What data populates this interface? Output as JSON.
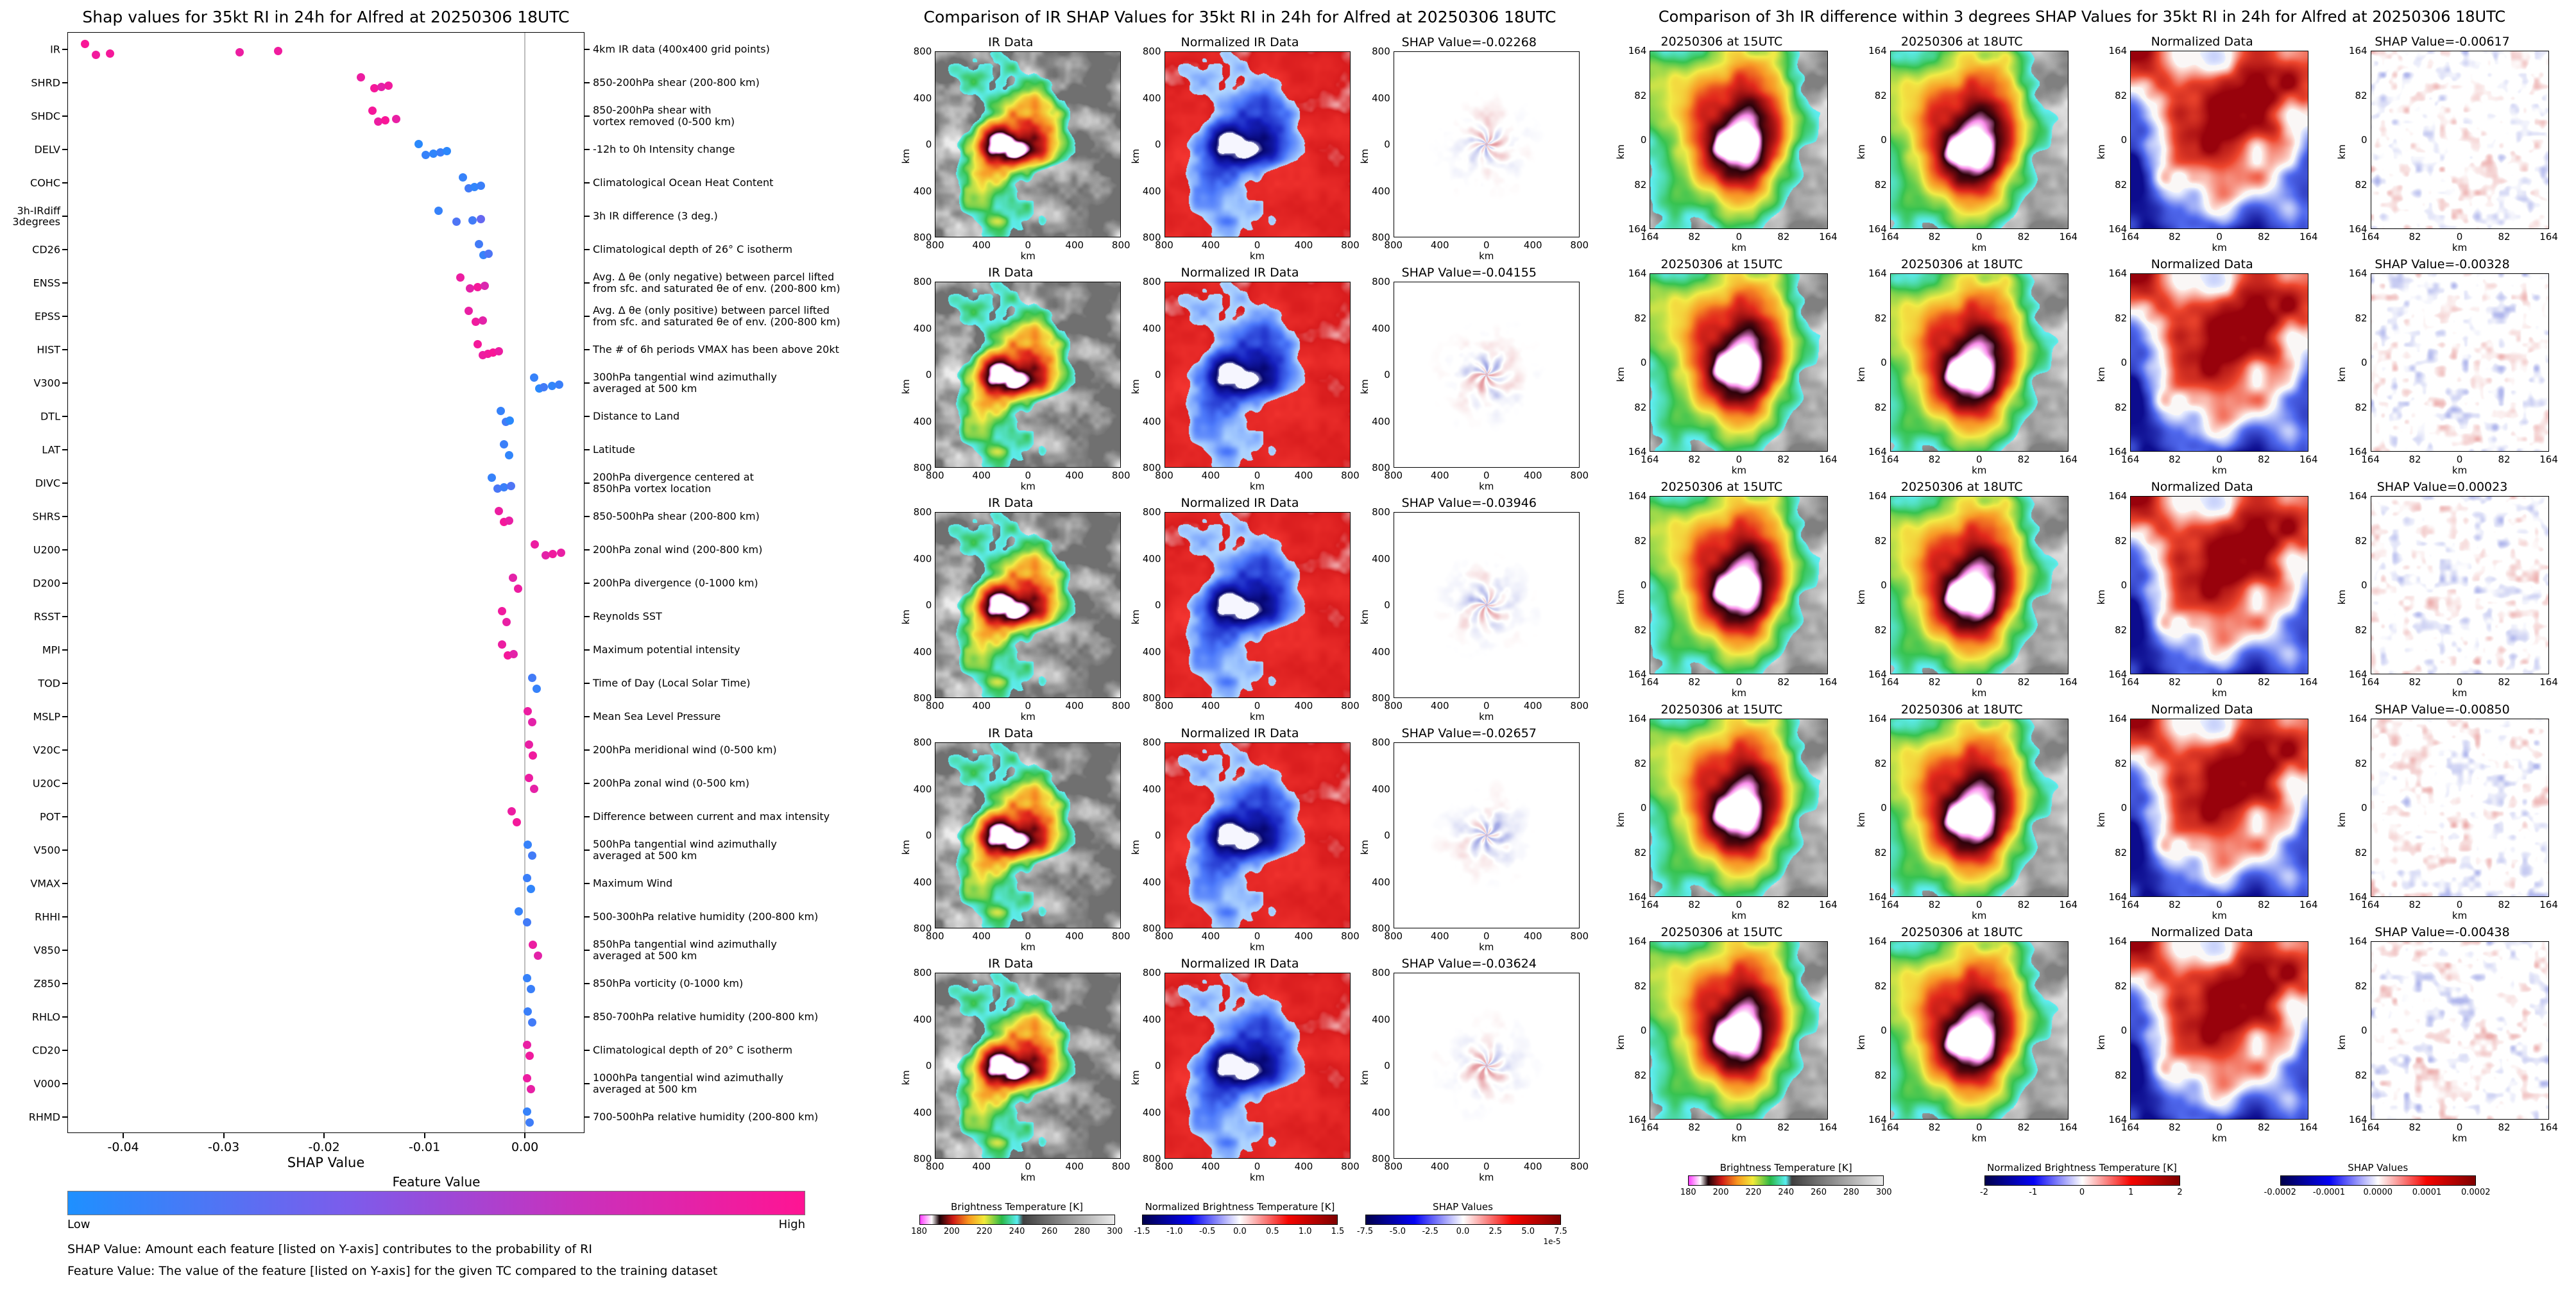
{
  "chart_data": [
    {
      "type": "scatter",
      "id": "shap_beeswarm",
      "title": "Shap values for 35kt RI in 24h for Alfred at 20250306 18UTC",
      "xlabel": "SHAP Value",
      "xlim": [
        -0.0455,
        0.006
      ],
      "xtick_values": [
        -0.04,
        -0.03,
        -0.02,
        -0.01,
        0.0
      ],
      "xtick_labels": [
        "-0.04",
        "-0.03",
        "-0.02",
        "-0.01",
        "0.00"
      ],
      "colorbar": {
        "title": "Feature Value",
        "low": "Low",
        "high": "High",
        "stops": [
          "#1e90ff",
          "#7c5ceb",
          "#c632be",
          "#ff1493"
        ]
      },
      "notes": [
        "SHAP Value: Amount each feature [listed on Y-axis] contributes to the probability of RI",
        "Feature Value: The value of the feature [listed on Y-axis] for the given TC compared to the training dataset"
      ],
      "features": [
        {
          "name": "IR",
          "desc": "4km IR data (400x400 grid points)",
          "v": [
            -0.0438,
            -0.0427,
            -0.0413,
            -0.0284,
            -0.0246
          ],
          "c": [
            0.97,
            0.93,
            0.95,
            0.9,
            0.92
          ]
        },
        {
          "name": "SHRD",
          "desc": "850-200hPa shear (200-800 km)",
          "v": [
            -0.0163,
            -0.015,
            -0.0143,
            -0.0136
          ],
          "c": [
            0.9,
            0.95,
            0.85,
            0.92
          ]
        },
        {
          "name": "SHDC",
          "desc": "850-200hPa shear with\nvortex removed (0-500 km)",
          "v": [
            -0.0152,
            -0.0146,
            -0.0139,
            -0.0128
          ],
          "c": [
            0.95,
            0.9,
            0.97,
            0.88
          ]
        },
        {
          "name": "DELV",
          "desc": "-12h to 0h Intensity change",
          "v": [
            -0.0106,
            -0.0099,
            -0.0091,
            -0.0084,
            -0.0078
          ],
          "c": [
            0.05,
            0.1,
            0.08,
            0.12,
            0.06
          ]
        },
        {
          "name": "COHC",
          "desc": "Climatological Ocean Heat Content",
          "v": [
            -0.0062,
            -0.0056,
            -0.005,
            -0.0044
          ],
          "c": [
            0.1,
            0.15,
            0.08,
            0.12
          ]
        },
        {
          "name": "3h-IRdiff\n3degrees",
          "desc": "3h IR difference (3 deg.)",
          "v": [
            -0.0086,
            -0.0068,
            -0.0052,
            -0.0044
          ],
          "c": [
            0.1,
            0.2,
            0.15,
            0.3
          ]
        },
        {
          "name": "CD26",
          "desc": "Climatological depth of 26° C isotherm",
          "v": [
            -0.0046,
            -0.0041,
            -0.0036
          ],
          "c": [
            0.15,
            0.1,
            0.2
          ]
        },
        {
          "name": "ENSS",
          "desc": "Avg. Δ θe (only negative) between parcel lifted\nfrom sfc. and saturated θe of env. (200-800 km)",
          "v": [
            -0.0064,
            -0.0055,
            -0.0047,
            -0.004
          ],
          "c": [
            0.9,
            0.85,
            0.95,
            0.8
          ]
        },
        {
          "name": "EPSS",
          "desc": "Avg. Δ θe (only positive) between parcel lifted\nfrom sfc. and saturated θe of env. (200-800 km)",
          "v": [
            -0.0056,
            -0.0049,
            -0.0042
          ],
          "c": [
            0.88,
            0.92,
            0.85
          ]
        },
        {
          "name": "HIST",
          "desc": "The # of 6h periods VMAX has been above 20kt",
          "v": [
            -0.0047,
            -0.0042,
            -0.0037,
            -0.0032,
            -0.0026
          ],
          "c": [
            0.95,
            0.9,
            0.93,
            0.97,
            0.9
          ]
        },
        {
          "name": "V300",
          "desc": "300hPa tangential wind azimuthally\naveraged at 500 km",
          "v": [
            0.0009,
            0.0014,
            0.0019,
            0.0027,
            0.0034
          ],
          "c": [
            0.1,
            0.05,
            0.15,
            0.08,
            0.12
          ]
        },
        {
          "name": "DTL",
          "desc": "Distance to Land",
          "v": [
            -0.0024,
            -0.0019,
            -0.0015
          ],
          "c": [
            0.1,
            0.15,
            0.05
          ]
        },
        {
          "name": "LAT",
          "desc": "Latitude",
          "v": [
            -0.0021,
            -0.0016
          ],
          "c": [
            0.12,
            0.08
          ]
        },
        {
          "name": "DIVC",
          "desc": "200hPa divergence centered at\n850hPa vortex location",
          "v": [
            -0.0033,
            -0.0027,
            -0.0021,
            -0.0014
          ],
          "c": [
            0.1,
            0.18,
            0.12,
            0.2
          ]
        },
        {
          "name": "SHRS",
          "desc": "850-500hPa shear (200-800 km)",
          "v": [
            -0.0026,
            -0.0021,
            -0.0016
          ],
          "c": [
            0.9,
            0.95,
            0.88
          ]
        },
        {
          "name": "U200",
          "desc": "200hPa zonal wind (200-800 km)",
          "v": [
            0.001,
            0.0021,
            0.0028,
            0.0036
          ],
          "c": [
            0.9,
            0.85,
            0.92,
            0.88
          ]
        },
        {
          "name": "D200",
          "desc": "200hPa divergence (0-1000 km)",
          "v": [
            -0.0012,
            -0.0007
          ],
          "c": [
            0.85,
            0.9
          ]
        },
        {
          "name": "RSST",
          "desc": "Reynolds SST",
          "v": [
            -0.0023,
            -0.0018
          ],
          "c": [
            0.92,
            0.88
          ]
        },
        {
          "name": "MPI",
          "desc": "Maximum potential intensity",
          "v": [
            -0.0023,
            -0.0017,
            -0.0011
          ],
          "c": [
            0.9,
            0.95,
            0.85
          ]
        },
        {
          "name": "TOD",
          "desc": "Time of Day (Local Solar Time)",
          "v": [
            0.0007,
            0.0012
          ],
          "c": [
            0.15,
            0.1
          ]
        },
        {
          "name": "MSLP",
          "desc": "Mean Sea Level Pressure",
          "v": [
            0.0003,
            0.0007
          ],
          "c": [
            0.9,
            0.85
          ]
        },
        {
          "name": "V20C",
          "desc": "200hPa meridional wind (0-500 km)",
          "v": [
            0.0004,
            0.0008
          ],
          "c": [
            0.88,
            0.92
          ]
        },
        {
          "name": "U20C",
          "desc": "200hPa zonal wind (0-500 km)",
          "v": [
            0.0004,
            0.0009
          ],
          "c": [
            0.9,
            0.86
          ]
        },
        {
          "name": "POT",
          "desc": "Difference between current and max intensity",
          "v": [
            -0.0013,
            -0.0008
          ],
          "c": [
            0.9,
            0.94
          ]
        },
        {
          "name": "V500",
          "desc": "500hPa tangential wind azimuthally\naveraged at 500 km",
          "v": [
            0.0003,
            0.0007
          ],
          "c": [
            0.1,
            0.15
          ]
        },
        {
          "name": "VMAX",
          "desc": "Maximum Wind",
          "v": [
            0.0002,
            0.0006
          ],
          "c": [
            0.12,
            0.08
          ]
        },
        {
          "name": "RHHI",
          "desc": "500-300hPa relative humidity (200-800 km)",
          "v": [
            -0.0006,
            0.0002
          ],
          "c": [
            0.1,
            0.15
          ]
        },
        {
          "name": "V850",
          "desc": "850hPa tangential wind azimuthally\naveraged at 500 km",
          "v": [
            0.0008,
            0.0013
          ],
          "c": [
            0.9,
            0.85
          ]
        },
        {
          "name": "Z850",
          "desc": "850hPa vorticity (0-1000 km)",
          "v": [
            0.0002,
            0.0006
          ],
          "c": [
            0.1,
            0.12
          ]
        },
        {
          "name": "RHLO",
          "desc": "850-700hPa relative humidity (200-800 km)",
          "v": [
            0.0003,
            0.0007
          ],
          "c": [
            0.12,
            0.15
          ]
        },
        {
          "name": "CD20",
          "desc": "Climatological depth of 20° C isotherm",
          "v": [
            0.0002,
            0.0005
          ],
          "c": [
            0.88,
            0.92
          ]
        },
        {
          "name": "V000",
          "desc": "1000hPa tangential wind azimuthally\naveraged at 500 km",
          "v": [
            0.0002,
            0.0006
          ],
          "c": [
            0.9,
            0.87
          ]
        },
        {
          "name": "RHMD",
          "desc": "700-500hPa relative humidity (200-800 km)",
          "v": [
            0.0002,
            0.0005
          ],
          "c": [
            0.1,
            0.14
          ]
        }
      ]
    },
    {
      "type": "heatmap",
      "id": "ir_shap_grid",
      "title": "Comparison of IR SHAP Values for 35kt RI in 24h for Alfred at 20250306 18UTC",
      "axis": {
        "ticks": [
          "800",
          "400",
          "0",
          "400",
          "800"
        ],
        "unit": "km"
      },
      "rows": [
        {
          "shap_value": -0.02268,
          "panels": [
            "IR Data",
            "Normalized IR Data",
            "SHAP Value=-0.02268"
          ]
        },
        {
          "shap_value": -0.04155,
          "panels": [
            "IR Data",
            "Normalized IR Data",
            "SHAP Value=-0.04155"
          ]
        },
        {
          "shap_value": -0.03946,
          "panels": [
            "IR Data",
            "Normalized IR Data",
            "SHAP Value=-0.03946"
          ]
        },
        {
          "shap_value": -0.02657,
          "panels": [
            "IR Data",
            "Normalized IR Data",
            "SHAP Value=-0.02657"
          ]
        },
        {
          "shap_value": -0.03624,
          "panels": [
            "IR Data",
            "Normalized IR Data",
            "SHAP Value=-0.03624"
          ]
        }
      ],
      "colorbars": [
        {
          "label": "Brightness Temperature [K]",
          "type": "ir",
          "ticks": [
            "180",
            "200",
            "220",
            "240",
            "260",
            "280",
            "300"
          ]
        },
        {
          "label": "Normalized Brightness Temperature [K]",
          "type": "seismic",
          "ticks": [
            "-1.5",
            "-1.0",
            "-0.5",
            "0.0",
            "0.5",
            "1.0",
            "1.5"
          ]
        },
        {
          "label": "SHAP Values",
          "type": "seismic",
          "ticks": [
            "-7.5",
            "-5.0",
            "-2.5",
            "0.0",
            "2.5",
            "5.0",
            "7.5"
          ],
          "exponent": "1e-5"
        }
      ]
    },
    {
      "type": "heatmap",
      "id": "irdiff_shap_grid",
      "title": "Comparison of 3h IR difference within 3 degrees SHAP Values for 35kt RI in 24h for Alfred at 20250306 18UTC",
      "axis": {
        "ticks": [
          "164",
          "82",
          "0",
          "82",
          "164"
        ],
        "unit": "km"
      },
      "rows": [
        {
          "shap_value": -0.00617,
          "panels": [
            "20250306 at 15UTC",
            "20250306 at 18UTC",
            "Normalized Data",
            "SHAP Value=-0.00617"
          ]
        },
        {
          "shap_value": -0.00328,
          "panels": [
            "20250306 at 15UTC",
            "20250306 at 18UTC",
            "Normalized Data",
            "SHAP Value=-0.00328"
          ]
        },
        {
          "shap_value": 0.00023,
          "panels": [
            "20250306 at 15UTC",
            "20250306 at 18UTC",
            "Normalized Data",
            "SHAP Value=0.00023"
          ]
        },
        {
          "shap_value": -0.0085,
          "panels": [
            "20250306 at 15UTC",
            "20250306 at 18UTC",
            "Normalized Data",
            "SHAP Value=-0.00850"
          ]
        },
        {
          "shap_value": -0.00438,
          "panels": [
            "20250306 at 15UTC",
            "20250306 at 18UTC",
            "Normalized Data",
            "SHAP Value=-0.00438"
          ]
        }
      ],
      "colorbars": [
        {
          "label": "Brightness Temperature [K]",
          "type": "ir",
          "ticks": [
            "180",
            "200",
            "220",
            "240",
            "260",
            "280",
            "300"
          ]
        },
        {
          "label": "Normalized Brightness Temperature [K]",
          "type": "seismic",
          "ticks": [
            "-2",
            "-1",
            "0",
            "1",
            "2"
          ]
        },
        {
          "label": "SHAP Values",
          "type": "seismic",
          "ticks": [
            "-0.0002",
            "-0.0001",
            "0.0000",
            "0.0001",
            "0.0002"
          ]
        }
      ]
    }
  ]
}
